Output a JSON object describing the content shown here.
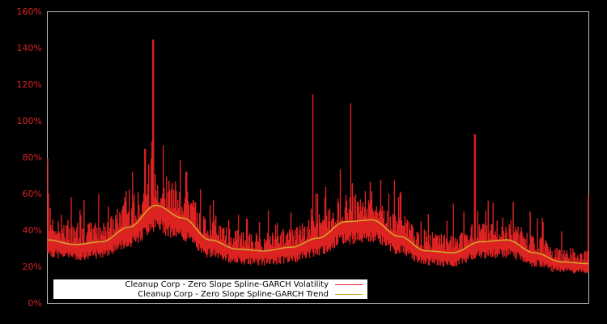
{
  "chart_data": {
    "type": "line",
    "title": "",
    "xlabel": "",
    "ylabel": "",
    "ylim": [
      0,
      160
    ],
    "y_ticks": [
      "0%",
      "20%",
      "40%",
      "60%",
      "80%",
      "100%",
      "120%",
      "140%",
      "160%"
    ],
    "grid": false,
    "legend_position": "bottom-left inside",
    "background": "#000000",
    "series": [
      {
        "name": "Cleanup Corp - Zero Slope Spline-GARCH Volatility",
        "color": "#dd2222",
        "x_fraction": [
          0.0,
          0.05,
          0.1,
          0.15,
          0.18,
          0.195,
          0.22,
          0.25,
          0.3,
          0.35,
          0.4,
          0.45,
          0.49,
          0.52,
          0.56,
          0.6,
          0.65,
          0.7,
          0.75,
          0.79,
          0.85,
          0.9,
          0.95,
          1.0
        ],
        "values": [
          80,
          36,
          40,
          48,
          85,
          145,
          60,
          40,
          32,
          30,
          35,
          50,
          115,
          45,
          110,
          45,
          35,
          40,
          55,
          93,
          35,
          28,
          22,
          60
        ]
      },
      {
        "name": "Cleanup Corp - Zero Slope Spline-GARCH Trend",
        "color": "#d4a82a",
        "x_fraction": [
          0.0,
          0.05,
          0.1,
          0.15,
          0.2,
          0.25,
          0.3,
          0.35,
          0.4,
          0.45,
          0.5,
          0.55,
          0.6,
          0.65,
          0.7,
          0.75,
          0.8,
          0.85,
          0.9,
          0.95,
          1.0
        ],
        "values": [
          35,
          32.5,
          34,
          42,
          54,
          47,
          35,
          30,
          29,
          31,
          36,
          45,
          46,
          37,
          29,
          28,
          34,
          35,
          28,
          23,
          22
        ]
      }
    ]
  },
  "axis": {
    "ticks": [
      "160%",
      "140%",
      "120%",
      "100%",
      "80%",
      "60%",
      "40%",
      "20%",
      "0%"
    ]
  },
  "legend": {
    "volatility_label": "Cleanup Corp - Zero Slope Spline-GARCH Volatility",
    "trend_label": "Cleanup Corp - Zero Slope Spline-GARCH Trend",
    "volatility_color": "#dd2222",
    "trend_color": "#d4a82a"
  }
}
